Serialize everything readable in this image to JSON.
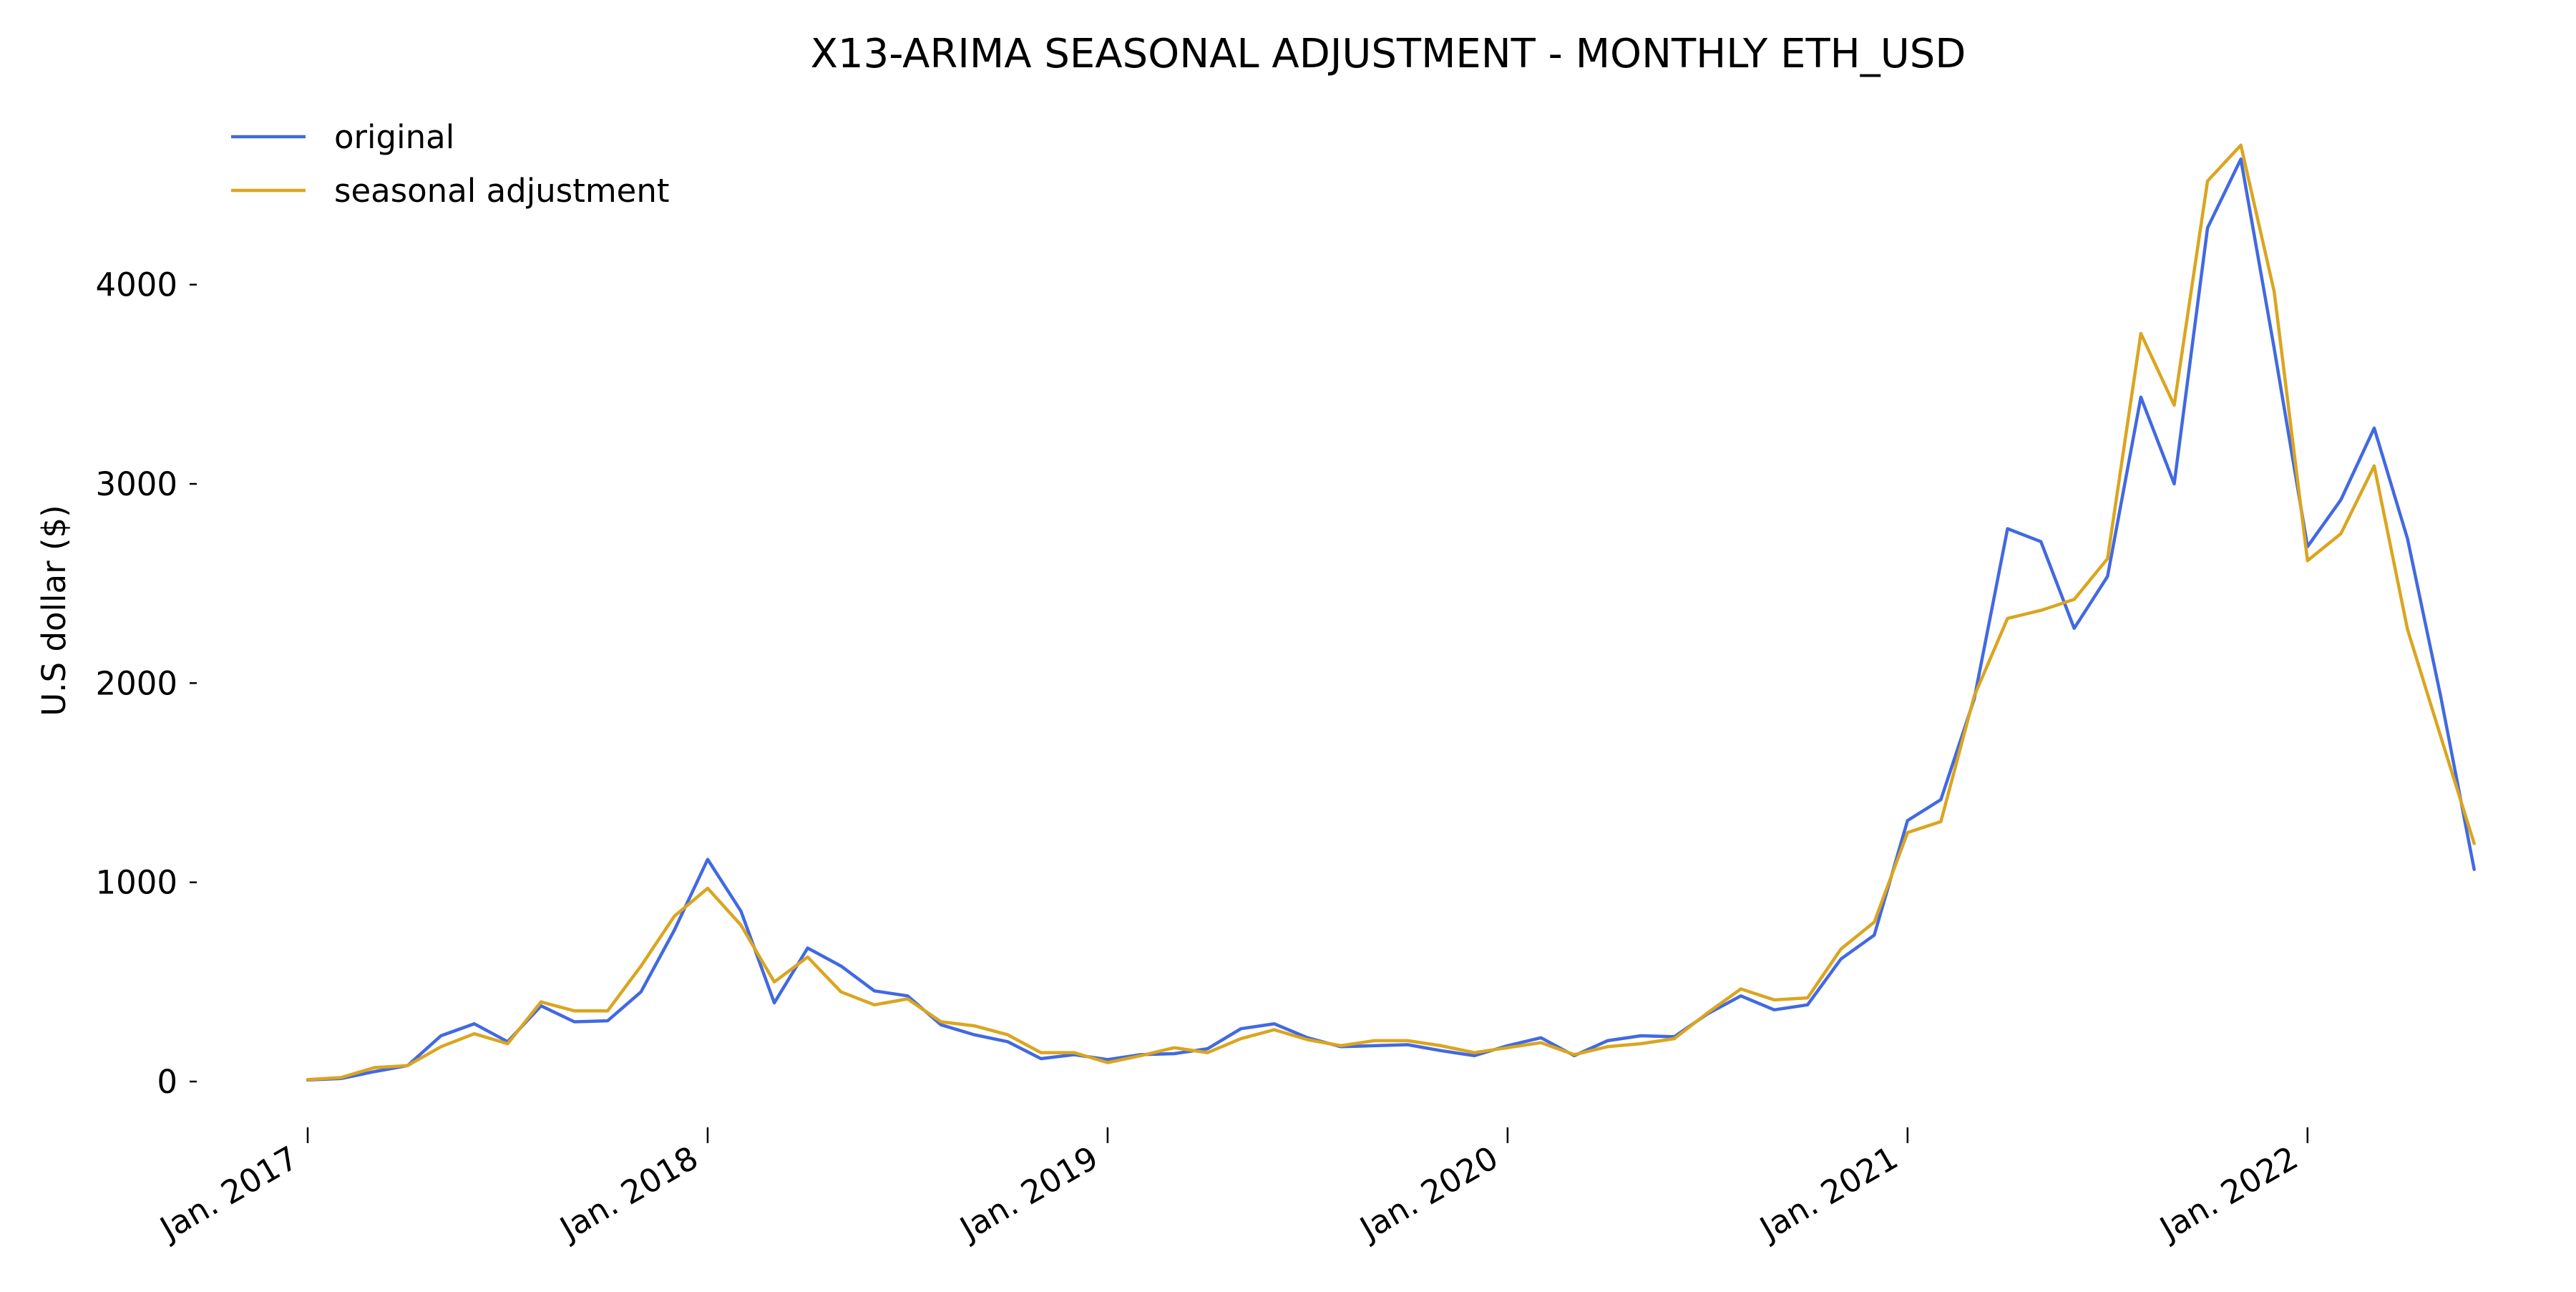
{
  "chart_data": {
    "type": "line",
    "title": "X13-ARIMA SEASONAL ADJUSTMENT - MONTHLY ETH_USD",
    "xlabel": "",
    "ylabel": "U.S dollar ($)",
    "x_start": "2017-01",
    "x": [
      "2017-01",
      "2017-02",
      "2017-03",
      "2017-04",
      "2017-05",
      "2017-06",
      "2017-07",
      "2017-08",
      "2017-09",
      "2017-10",
      "2017-11",
      "2017-12",
      "2018-01",
      "2018-02",
      "2018-03",
      "2018-04",
      "2018-05",
      "2018-06",
      "2018-07",
      "2018-08",
      "2018-09",
      "2018-10",
      "2018-11",
      "2018-12",
      "2019-01",
      "2019-02",
      "2019-03",
      "2019-04",
      "2019-05",
      "2019-06",
      "2019-07",
      "2019-08",
      "2019-09",
      "2019-10",
      "2019-11",
      "2019-12",
      "2020-01",
      "2020-02",
      "2020-03",
      "2020-04",
      "2020-05",
      "2020-06",
      "2020-07",
      "2020-08",
      "2020-09",
      "2020-10",
      "2020-11",
      "2020-12",
      "2021-01",
      "2021-02",
      "2021-03",
      "2021-04",
      "2021-05",
      "2021-06",
      "2021-07",
      "2021-08",
      "2021-09",
      "2021-10",
      "2021-11",
      "2021-12",
      "2022-01",
      "2022-02",
      "2022-03",
      "2022-04",
      "2022-05",
      "2022-06"
    ],
    "xticks": [
      {
        "index": 0,
        "label": "Jan. 2017"
      },
      {
        "index": 12,
        "label": "Jan. 2018"
      },
      {
        "index": 24,
        "label": "Jan. 2019"
      },
      {
        "index": 36,
        "label": "Jan. 2020"
      },
      {
        "index": 48,
        "label": "Jan. 2021"
      },
      {
        "index": 60,
        "label": "Jan. 2022"
      }
    ],
    "yticks": [
      0,
      1000,
      2000,
      3000,
      4000
    ],
    "ylim": [
      -230,
      4800
    ],
    "grid": false,
    "legend_position": "top-left",
    "series": [
      {
        "name": "original",
        "color": "#4169e1",
        "values": [
          8,
          15,
          50,
          80,
          230,
          290,
          200,
          380,
          300,
          305,
          450,
          760,
          1115,
          855,
          395,
          670,
          580,
          455,
          430,
          285,
          235,
          200,
          115,
          135,
          110,
          135,
          140,
          165,
          265,
          290,
          220,
          175,
          180,
          185,
          155,
          130,
          180,
          220,
          130,
          205,
          230,
          225,
          340,
          430,
          360,
          385,
          615,
          735,
          1310,
          1415,
          1920,
          2775,
          2710,
          2275,
          2535,
          3435,
          3000,
          4285,
          4630,
          3680,
          2685,
          2920,
          3280,
          2725,
          1930,
          1065
        ]
      },
      {
        "name": "seasonal adjustment",
        "color": "#daa520",
        "values": [
          10,
          20,
          70,
          80,
          175,
          240,
          190,
          400,
          355,
          355,
          580,
          830,
          970,
          785,
          500,
          625,
          450,
          385,
          415,
          300,
          280,
          235,
          145,
          145,
          95,
          130,
          170,
          145,
          215,
          260,
          210,
          180,
          205,
          205,
          180,
          145,
          170,
          195,
          135,
          175,
          190,
          215,
          345,
          465,
          410,
          420,
          665,
          800,
          1250,
          1305,
          1935,
          2325,
          2365,
          2420,
          2625,
          3755,
          3395,
          4520,
          4700,
          3965,
          2615,
          2750,
          3090,
          2270,
          1730,
          1195
        ]
      }
    ]
  }
}
